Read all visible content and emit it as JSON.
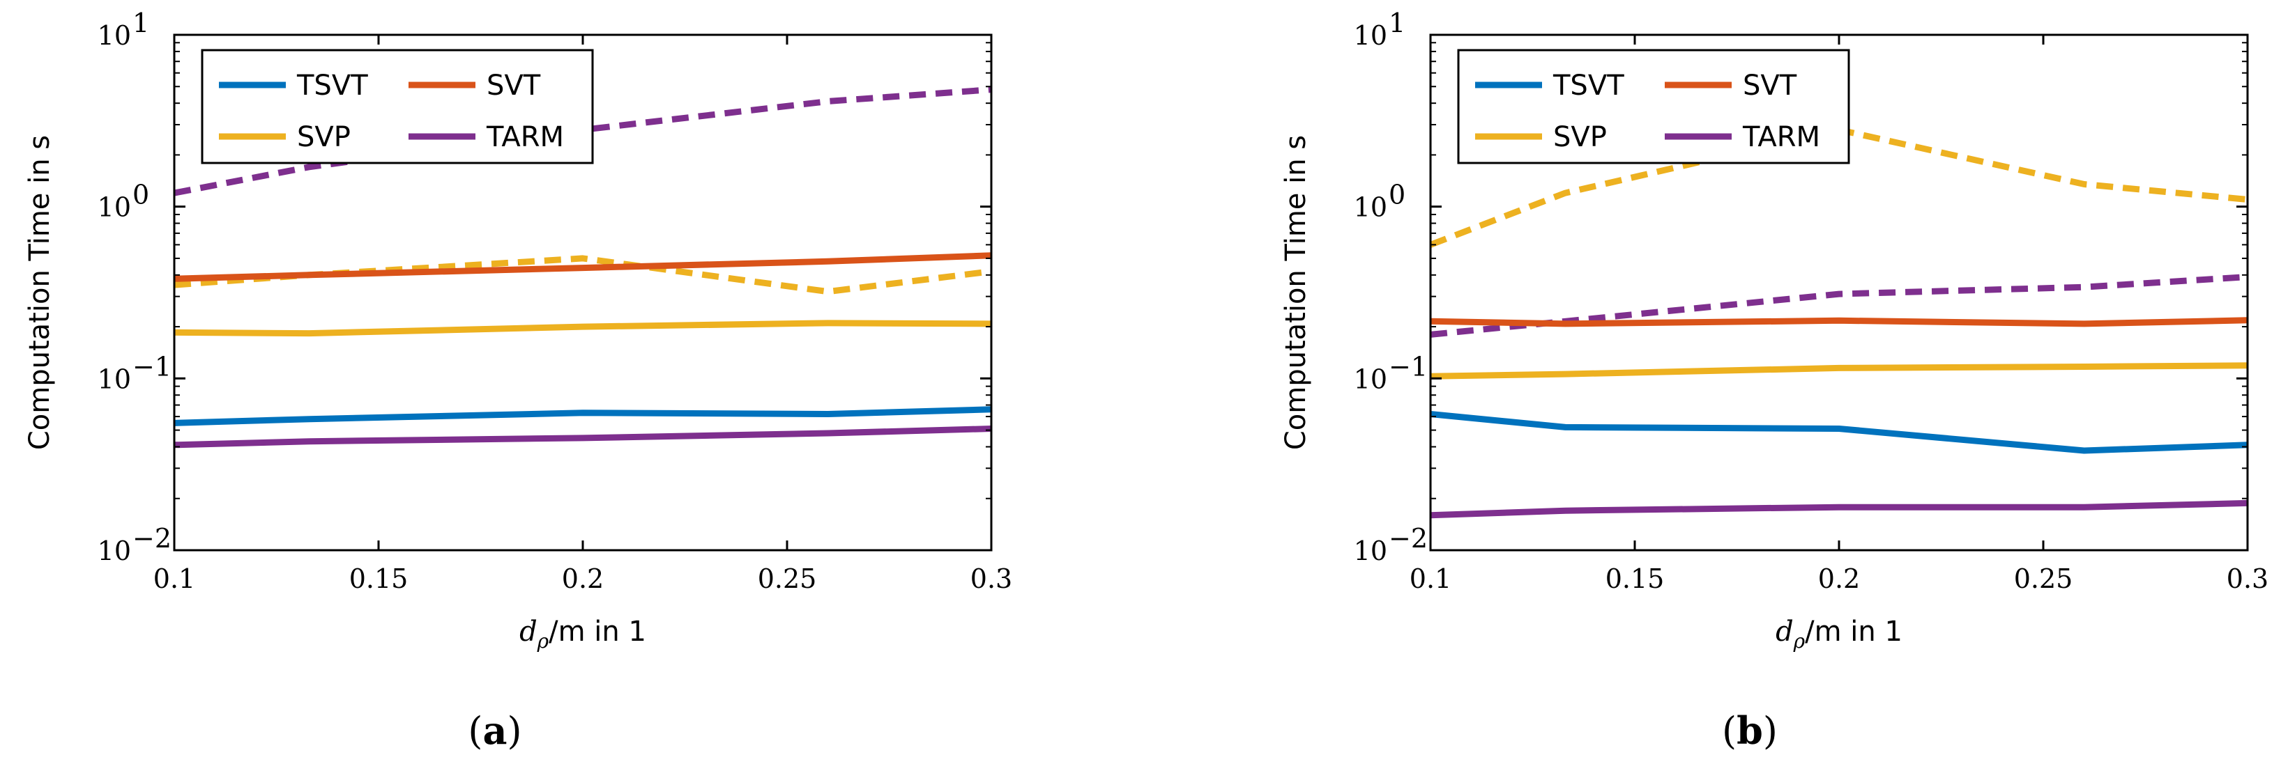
{
  "figure": {
    "panels": [
      {
        "caption_open": "(",
        "caption_letter": "a",
        "caption_close": ")"
      },
      {
        "caption_open": "(",
        "caption_letter": "b",
        "caption_close": ")"
      }
    ]
  },
  "chart_data": [
    {
      "type": "line",
      "panel": "a",
      "title": "",
      "ylabel": "Computation Time in s",
      "xlabel_prefix": "d",
      "xlabel_sub": "ρ",
      "xlabel_suffix": "/m in 1",
      "xscale": "linear",
      "yscale": "log",
      "xlim": [
        0.1,
        0.3
      ],
      "ylim": [
        0.01,
        10
      ],
      "xticks": [
        0.1,
        0.15,
        0.2,
        0.25,
        0.3
      ],
      "xtick_labels": [
        "0.1",
        "0.15",
        "0.2",
        "0.25",
        "0.3"
      ],
      "yticks": [
        0.01,
        0.1,
        1,
        10
      ],
      "ytick_base": "10",
      "ytick_exponents": [
        "−2",
        "−1",
        "0",
        "1"
      ],
      "grid": false,
      "legend": {
        "position": "top-left",
        "columns": 2,
        "entries": [
          "TSVT",
          "SVT",
          "SVP",
          "TARM"
        ]
      },
      "colors": {
        "TSVT": "#0072BD",
        "SVT": "#D95319",
        "SVP": "#EDB120",
        "TARM": "#7E2F8E"
      },
      "series": [
        {
          "name": "TSVT",
          "style": "solid",
          "x": [
            0.1,
            0.133,
            0.2,
            0.26,
            0.3
          ],
          "values": [
            0.055,
            0.058,
            0.063,
            0.062,
            0.066
          ]
        },
        {
          "name": "SVT",
          "style": "solid",
          "x": [
            0.1,
            0.133,
            0.2,
            0.26,
            0.3
          ],
          "values": [
            0.38,
            0.4,
            0.44,
            0.48,
            0.52
          ]
        },
        {
          "name": "SVP",
          "style": "solid",
          "x": [
            0.1,
            0.133,
            0.2,
            0.26,
            0.3
          ],
          "values": [
            0.185,
            0.183,
            0.2,
            0.21,
            0.208
          ]
        },
        {
          "name": "TARM",
          "style": "solid",
          "x": [
            0.1,
            0.133,
            0.2,
            0.26,
            0.3
          ],
          "values": [
            0.041,
            0.043,
            0.045,
            0.048,
            0.051
          ]
        },
        {
          "name": "SVP",
          "style": "dashed",
          "x": [
            0.1,
            0.133,
            0.2,
            0.26,
            0.3
          ],
          "values": [
            0.35,
            0.4,
            0.5,
            0.32,
            0.42
          ]
        },
        {
          "name": "TARM",
          "style": "dashed",
          "x": [
            0.1,
            0.133,
            0.2,
            0.26,
            0.3
          ],
          "values": [
            1.2,
            1.7,
            2.8,
            4.1,
            4.8
          ]
        }
      ]
    },
    {
      "type": "line",
      "panel": "b",
      "title": "",
      "ylabel": "Computation Time in s",
      "xlabel_prefix": "d",
      "xlabel_sub": "ρ",
      "xlabel_suffix": "/m in 1",
      "xscale": "linear",
      "yscale": "log",
      "xlim": [
        0.1,
        0.3
      ],
      "ylim": [
        0.01,
        10
      ],
      "xticks": [
        0.1,
        0.15,
        0.2,
        0.25,
        0.3
      ],
      "xtick_labels": [
        "0.1",
        "0.15",
        "0.2",
        "0.25",
        "0.3"
      ],
      "yticks": [
        0.01,
        0.1,
        1,
        10
      ],
      "ytick_base": "10",
      "ytick_exponents": [
        "−2",
        "−1",
        "0",
        "1"
      ],
      "grid": false,
      "legend": {
        "position": "top-left",
        "columns": 2,
        "entries": [
          "TSVT",
          "SVT",
          "SVP",
          "TARM"
        ]
      },
      "colors": {
        "TSVT": "#0072BD",
        "SVT": "#D95319",
        "SVP": "#EDB120",
        "TARM": "#7E2F8E"
      },
      "series": [
        {
          "name": "TSVT",
          "style": "solid",
          "x": [
            0.1,
            0.133,
            0.2,
            0.26,
            0.3
          ],
          "values": [
            0.062,
            0.052,
            0.051,
            0.038,
            0.041
          ]
        },
        {
          "name": "SVT",
          "style": "solid",
          "x": [
            0.1,
            0.133,
            0.2,
            0.26,
            0.3
          ],
          "values": [
            0.215,
            0.208,
            0.217,
            0.208,
            0.218
          ]
        },
        {
          "name": "SVP",
          "style": "solid",
          "x": [
            0.1,
            0.133,
            0.2,
            0.26,
            0.3
          ],
          "values": [
            0.103,
            0.106,
            0.115,
            0.117,
            0.119
          ]
        },
        {
          "name": "TARM",
          "style": "solid",
          "x": [
            0.1,
            0.133,
            0.2,
            0.26,
            0.3
          ],
          "values": [
            0.016,
            0.017,
            0.0178,
            0.0178,
            0.0188
          ]
        },
        {
          "name": "SVP",
          "style": "dashed",
          "x": [
            0.1,
            0.133,
            0.2,
            0.26,
            0.3
          ],
          "values": [
            0.6,
            1.2,
            2.8,
            1.35,
            1.1
          ]
        },
        {
          "name": "TARM",
          "style": "dashed",
          "x": [
            0.1,
            0.133,
            0.2,
            0.26,
            0.3
          ],
          "values": [
            0.18,
            0.215,
            0.31,
            0.34,
            0.39
          ]
        }
      ]
    }
  ]
}
